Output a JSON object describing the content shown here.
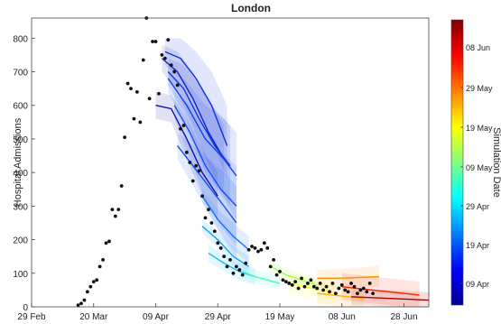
{
  "chart_data": {
    "type": "scatter",
    "title": "London",
    "xlabel": "",
    "ylabel": "Hospital Admissions",
    "x_ticks": [
      {
        "label": "29 Feb",
        "day": 0
      },
      {
        "label": "20 Mar",
        "day": 20
      },
      {
        "label": "09 Apr",
        "day": 40
      },
      {
        "label": "29 Apr",
        "day": 60
      },
      {
        "label": "19 May",
        "day": 80
      },
      {
        "label": "08 Jun",
        "day": 100
      },
      {
        "label": "28 Jun",
        "day": 120
      }
    ],
    "xlim_days": [
      0,
      128
    ],
    "ylim": [
      0,
      860
    ],
    "y_ticks": [
      0,
      100,
      200,
      300,
      400,
      500,
      600,
      700,
      800
    ],
    "grid": false,
    "colorbar": {
      "label": "Simulation Date",
      "ticks": [
        "09 Apr",
        "19 Apr",
        "29 Apr",
        "09 May",
        "19 May",
        "29 May",
        "08 Jun"
      ],
      "colors": [
        "#00008f",
        "#0000ff",
        "#0080ff",
        "#00ffff",
        "#80ff80",
        "#ffff00",
        "#ff8000",
        "#ff0000",
        "#800000"
      ]
    },
    "observed_admissions": {
      "name": "observed",
      "color": "#111111",
      "points": [
        [
          15,
          5
        ],
        [
          16,
          10
        ],
        [
          17,
          20
        ],
        [
          18,
          45
        ],
        [
          19,
          60
        ],
        [
          20,
          75
        ],
        [
          21,
          80
        ],
        [
          22,
          120
        ],
        [
          23,
          140
        ],
        [
          24,
          190
        ],
        [
          25,
          195
        ],
        [
          26,
          290
        ],
        [
          27,
          270
        ],
        [
          28,
          290
        ],
        [
          29,
          360
        ],
        [
          30,
          505
        ],
        [
          31,
          665
        ],
        [
          32,
          650
        ],
        [
          33,
          560
        ],
        [
          34,
          640
        ],
        [
          35,
          550
        ],
        [
          36,
          735
        ],
        [
          37,
          860
        ],
        [
          38,
          620
        ],
        [
          39,
          790
        ],
        [
          40,
          790
        ],
        [
          41,
          635
        ],
        [
          42,
          750
        ],
        [
          43,
          740
        ],
        [
          44,
          795
        ],
        [
          45,
          720
        ],
        [
          46,
          700
        ],
        [
          47,
          660
        ],
        [
          48,
          530
        ],
        [
          49,
          540
        ],
        [
          50,
          460
        ],
        [
          51,
          430
        ],
        [
          52,
          375
        ],
        [
          53,
          420
        ],
        [
          54,
          405
        ],
        [
          55,
          330
        ],
        [
          56,
          265
        ],
        [
          57,
          290
        ],
        [
          58,
          250
        ],
        [
          59,
          225
        ],
        [
          60,
          190
        ],
        [
          61,
          175
        ],
        [
          62,
          150
        ],
        [
          63,
          120
        ],
        [
          64,
          140
        ],
        [
          65,
          100
        ],
        [
          66,
          120
        ],
        [
          67,
          110
        ],
        [
          68,
          95
        ],
        [
          69,
          130
        ],
        [
          70,
          170
        ],
        [
          71,
          180
        ],
        [
          72,
          175
        ],
        [
          73,
          165
        ],
        [
          74,
          170
        ],
        [
          75,
          190
        ],
        [
          76,
          175
        ],
        [
          77,
          120
        ],
        [
          78,
          140
        ],
        [
          79,
          95
        ],
        [
          80,
          105
        ],
        [
          81,
          80
        ],
        [
          82,
          75
        ],
        [
          83,
          70
        ],
        [
          84,
          65
        ],
        [
          85,
          75
        ],
        [
          86,
          55
        ],
        [
          87,
          85
        ],
        [
          88,
          60
        ],
        [
          89,
          70
        ],
        [
          90,
          80
        ],
        [
          91,
          60
        ],
        [
          92,
          55
        ],
        [
          93,
          70
        ],
        [
          94,
          50
        ],
        [
          95,
          60
        ],
        [
          96,
          45
        ],
        [
          97,
          70
        ],
        [
          98,
          40
        ],
        [
          99,
          55
        ],
        [
          100,
          65
        ],
        [
          101,
          50
        ],
        [
          102,
          45
        ],
        [
          103,
          70
        ],
        [
          104,
          60
        ],
        [
          105,
          40
        ],
        [
          106,
          50
        ],
        [
          107,
          55
        ],
        [
          108,
          45
        ],
        [
          109,
          70
        ],
        [
          110,
          40
        ]
      ]
    },
    "simulations": [
      {
        "sim_date": "09 Apr",
        "color": "#1010b0",
        "x": [
          40,
          45,
          50,
          55,
          60
        ],
        "y": [
          600,
          590,
          500,
          400,
          330
        ],
        "band_upper": [
          640,
          630,
          560,
          470,
          400
        ],
        "band_lower": [
          560,
          550,
          440,
          330,
          260
        ]
      },
      {
        "sim_date": "10 Apr",
        "color": "#1020c8",
        "x": [
          42,
          47,
          52,
          57,
          62
        ],
        "y": [
          740,
          700,
          620,
          520,
          440
        ],
        "band_upper": [
          780,
          760,
          700,
          620,
          540
        ],
        "band_lower": [
          700,
          640,
          540,
          420,
          340
        ]
      },
      {
        "sim_date": "11 Apr",
        "color": "#1030d8",
        "x": [
          43,
          48,
          53,
          58,
          63
        ],
        "y": [
          760,
          740,
          680,
          600,
          480
        ],
        "band_upper": [
          800,
          800,
          760,
          700,
          600
        ],
        "band_lower": [
          720,
          680,
          600,
          500,
          380
        ]
      },
      {
        "sim_date": "12 Apr",
        "color": "#1030e0",
        "x": [
          44,
          49,
          54,
          59,
          64
        ],
        "y": [
          700,
          650,
          560,
          480,
          420
        ],
        "band_upper": [
          740,
          720,
          660,
          590,
          540
        ],
        "band_lower": [
          660,
          580,
          460,
          370,
          300
        ]
      },
      {
        "sim_date": "13 Apr",
        "color": "#1040e8",
        "x": [
          44,
          50,
          56,
          62,
          66
        ],
        "y": [
          680,
          600,
          500,
          440,
          390
        ],
        "band_upper": [
          720,
          670,
          600,
          560,
          520
        ],
        "band_lower": [
          640,
          530,
          400,
          320,
          260
        ]
      },
      {
        "sim_date": "14 Apr",
        "color": "#1050f0",
        "x": [
          46,
          51,
          56,
          61,
          66
        ],
        "y": [
          600,
          520,
          420,
          350,
          300
        ],
        "band_upper": [
          640,
          600,
          520,
          460,
          420
        ],
        "band_lower": [
          560,
          440,
          320,
          240,
          180
        ]
      },
      {
        "sim_date": "15 Apr",
        "color": "#1050f0",
        "x": [
          47,
          52,
          57,
          62,
          66
        ],
        "y": [
          480,
          420,
          360,
          300,
          250
        ],
        "band_upper": [
          520,
          480,
          440,
          400,
          360
        ],
        "band_lower": [
          440,
          360,
          280,
          200,
          140
        ]
      },
      {
        "sim_date": "20 Apr",
        "color": "#1070ff",
        "x": [
          55,
          60,
          65,
          70
        ],
        "y": [
          330,
          260,
          210,
          170
        ],
        "band_upper": [
          350,
          290,
          250,
          210
        ],
        "band_lower": [
          310,
          230,
          170,
          130
        ]
      },
      {
        "sim_date": "22 Apr",
        "color": "#10a0ff",
        "x": [
          55,
          60,
          65,
          70
        ],
        "y": [
          240,
          200,
          150,
          120
        ],
        "band_upper": [
          260,
          225,
          180,
          150
        ],
        "band_lower": [
          220,
          175,
          120,
          90
        ]
      },
      {
        "sim_date": "24 Apr",
        "color": "#10c0ff",
        "x": [
          57,
          62,
          67,
          72
        ],
        "y": [
          160,
          130,
          105,
          90
        ],
        "band_upper": [
          185,
          155,
          130,
          115
        ],
        "band_lower": [
          135,
          105,
          80,
          65
        ]
      },
      {
        "sim_date": "05 May",
        "color": "#40ffc0",
        "x": [
          68,
          72,
          76,
          80
        ],
        "y": [
          105,
          90,
          80,
          70
        ],
        "band_upper": [
          125,
          110,
          100,
          90
        ],
        "band_lower": [
          85,
          70,
          60,
          50
        ]
      },
      {
        "sim_date": "14 May",
        "color": "#a0ff40",
        "x": [
          77,
          82,
          87,
          92
        ],
        "y": [
          120,
          95,
          80,
          65
        ],
        "band_upper": [
          135,
          115,
          100,
          85
        ],
        "band_lower": [
          105,
          75,
          60,
          45
        ]
      },
      {
        "sim_date": "20 May",
        "color": "#ffff20",
        "x": [
          83,
          88,
          93,
          98
        ],
        "y": [
          70,
          60,
          50,
          42
        ],
        "band_upper": [
          100,
          90,
          80,
          72
        ],
        "band_lower": [
          40,
          30,
          20,
          12
        ]
      },
      {
        "sim_date": "29 May",
        "color": "#ffb000",
        "x": [
          92,
          97,
          102,
          107
        ],
        "y": [
          40,
          35,
          30,
          25
        ],
        "band_upper": [
          70,
          65,
          60,
          55
        ],
        "band_lower": [
          10,
          5,
          0,
          0
        ]
      },
      {
        "sim_date": "31 May",
        "color": "#ff9000",
        "x": [
          92,
          97,
          102,
          107,
          112
        ],
        "y": [
          85,
          85,
          86,
          88,
          90
        ],
        "band_upper": [
          110,
          112,
          115,
          118,
          122
        ],
        "band_lower": [
          60,
          58,
          58,
          60,
          60
        ]
      },
      {
        "sim_date": "08 Jun",
        "color": "#ff2000",
        "x": [
          100,
          105,
          110,
          115,
          120,
          125
        ],
        "y": [
          60,
          55,
          50,
          45,
          40,
          35
        ],
        "band_upper": [
          100,
          95,
          90,
          85,
          80,
          75
        ],
        "band_lower": [
          20,
          15,
          10,
          5,
          0,
          0
        ]
      },
      {
        "sim_date": "12 Jun",
        "color": "#b00000",
        "x": [
          103,
          108,
          113,
          118,
          123,
          128
        ],
        "y": [
          30,
          28,
          26,
          24,
          22,
          20
        ],
        "band_upper": [
          55,
          52,
          50,
          48,
          46,
          44
        ],
        "band_lower": [
          5,
          4,
          2,
          0,
          0,
          0
        ]
      }
    ]
  }
}
